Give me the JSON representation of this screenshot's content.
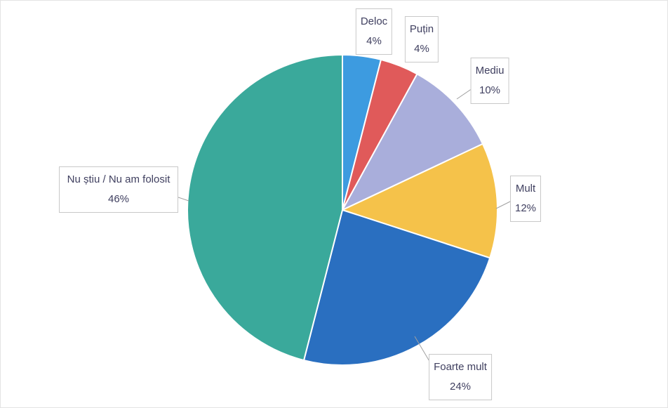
{
  "chart_data": {
    "type": "pie",
    "categories": [
      "Deloc",
      "Puțin",
      "Mediu",
      "Mult",
      "Foarte mult",
      "Nu știu / Nu am folosit"
    ],
    "values": [
      4,
      4,
      10,
      12,
      24,
      46
    ],
    "value_labels": [
      "4%",
      "4%",
      "10%",
      "12%",
      "24%",
      "46%"
    ],
    "colors": [
      "#3d9be0",
      "#e05a5a",
      "#a9aedb",
      "#f5c24a",
      "#2a6fc0",
      "#3aa99b"
    ]
  }
}
